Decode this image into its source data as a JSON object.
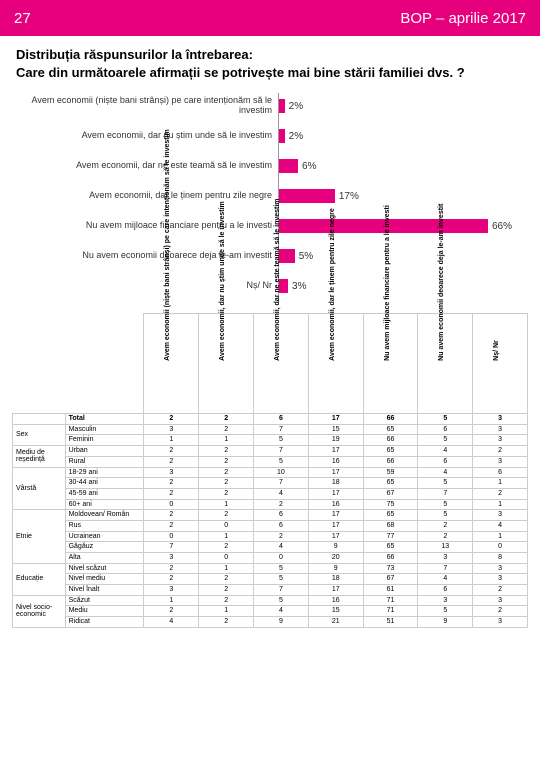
{
  "header": {
    "page": "27",
    "title": "BOP – aprilie 2017"
  },
  "question": {
    "line1": "Distribuția răspunsurilor la întrebarea:",
    "line2": "Care din următoarele afirmații se potrivește mai bine stării familiei dvs. ?"
  },
  "chart": {
    "max": 70,
    "bar_color": "#e6007e",
    "rows": [
      {
        "label": "Avem economii (niște bani strânși) pe care intenționăm să le investim",
        "value": 2,
        "text": "2%"
      },
      {
        "label": "Avem economii, dar nu știm unde să le investim",
        "value": 2,
        "text": "2%"
      },
      {
        "label": "Avem economii, dar ne este teamă să le investim",
        "value": 6,
        "text": "6%"
      },
      {
        "label": "Avem economii, dar le ținem pentru zile negre",
        "value": 17,
        "text": "17%"
      },
      {
        "label": "Nu avem mijloace financiare pentru a le investi",
        "value": 66,
        "text": "66%"
      },
      {
        "label": "Nu avem economii deoarece deja le-am investit",
        "value": 5,
        "text": "5%"
      },
      {
        "label": "Nș/ Nr",
        "value": 3,
        "text": "3%"
      }
    ]
  },
  "table": {
    "col_headers": [
      "Avem economii (niște bani strânși) pe care intenționăm să le investim",
      "Avem economii, dar nu știm unde să le investim",
      "Avem economii, dar ne este teamă să le investim",
      "Avem economii, dar le ținem pentru zile negre",
      "Nu avem mijloace financiare pentru a le investi",
      "Nu avem economii deoarece deja le-am investit",
      "Nș/ Nr"
    ],
    "total_label": "Total",
    "total": [
      2,
      2,
      6,
      17,
      66,
      5,
      3
    ],
    "groups": [
      {
        "name": "Sex",
        "rows": [
          {
            "label": "Masculin",
            "vals": [
              3,
              2,
              7,
              15,
              65,
              6,
              3
            ]
          },
          {
            "label": "Feminin",
            "vals": [
              1,
              1,
              5,
              19,
              66,
              5,
              3
            ]
          }
        ]
      },
      {
        "name": "Mediu de reședință",
        "rows": [
          {
            "label": "Urban",
            "vals": [
              2,
              2,
              7,
              17,
              65,
              4,
              2
            ]
          },
          {
            "label": "Rural",
            "vals": [
              2,
              2,
              5,
              16,
              66,
              6,
              3
            ]
          }
        ]
      },
      {
        "name": "Vârstă",
        "rows": [
          {
            "label": "18-29 ani",
            "vals": [
              3,
              2,
              10,
              17,
              59,
              4,
              6
            ]
          },
          {
            "label": "30-44 ani",
            "vals": [
              2,
              2,
              7,
              18,
              65,
              5,
              1
            ]
          },
          {
            "label": "45-59 ani",
            "vals": [
              2,
              2,
              4,
              17,
              67,
              7,
              2
            ]
          },
          {
            "label": "60+ ani",
            "vals": [
              0,
              1,
              2,
              16,
              75,
              5,
              1
            ]
          }
        ]
      },
      {
        "name": "Etnie",
        "rows": [
          {
            "label": "Moldovean/ Român",
            "vals": [
              2,
              2,
              6,
              17,
              65,
              5,
              3
            ]
          },
          {
            "label": "Rus",
            "vals": [
              2,
              0,
              6,
              17,
              68,
              2,
              4
            ]
          },
          {
            "label": "Ucrainean",
            "vals": [
              0,
              1,
              2,
              17,
              77,
              2,
              1
            ]
          },
          {
            "label": "Găgăuz",
            "vals": [
              7,
              2,
              4,
              9,
              65,
              13,
              0
            ]
          },
          {
            "label": "Alta",
            "vals": [
              3,
              0,
              0,
              20,
              66,
              3,
              8
            ]
          }
        ]
      },
      {
        "name": "Educație",
        "rows": [
          {
            "label": "Nivel scăzut",
            "vals": [
              2,
              1,
              5,
              9,
              73,
              7,
              3
            ]
          },
          {
            "label": "Nivel mediu",
            "vals": [
              2,
              2,
              5,
              18,
              67,
              4,
              3
            ]
          },
          {
            "label": "Nivel înalt",
            "vals": [
              3,
              2,
              7,
              17,
              61,
              6,
              2
            ]
          }
        ]
      },
      {
        "name": "Nivel socio-economic",
        "rows": [
          {
            "label": "Scăzut",
            "vals": [
              1,
              2,
              5,
              16,
              71,
              3,
              3
            ]
          },
          {
            "label": "Mediu",
            "vals": [
              2,
              1,
              4,
              15,
              71,
              5,
              2
            ]
          },
          {
            "label": "Ridicat",
            "vals": [
              4,
              2,
              9,
              21,
              51,
              9,
              3
            ]
          }
        ]
      }
    ]
  }
}
